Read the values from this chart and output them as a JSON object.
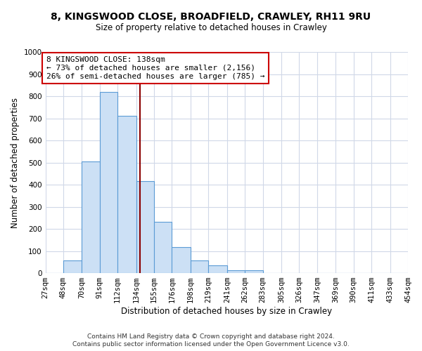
{
  "title": "8, KINGSWOOD CLOSE, BROADFIELD, CRAWLEY, RH11 9RU",
  "subtitle": "Size of property relative to detached houses in Crawley",
  "xlabel": "Distribution of detached houses by size in Crawley",
  "ylabel": "Number of detached properties",
  "bar_edges": [
    27,
    48,
    70,
    91,
    112,
    134,
    155,
    176,
    198,
    219,
    241,
    262,
    283,
    305,
    326,
    347,
    369,
    390,
    411,
    433,
    454
  ],
  "bar_heights": [
    0,
    57,
    505,
    820,
    710,
    415,
    233,
    118,
    57,
    35,
    12,
    12,
    0,
    0,
    0,
    0,
    0,
    0,
    0,
    0
  ],
  "bar_color": "#cce0f5",
  "bar_edge_color": "#5b9bd5",
  "property_size": 138,
  "vline_color": "#8b0000",
  "annotation_line1": "8 KINGSWOOD CLOSE: 138sqm",
  "annotation_line2": "← 73% of detached houses are smaller (2,156)",
  "annotation_line3": "26% of semi-detached houses are larger (785) →",
  "annotation_box_color": "#ffffff",
  "annotation_box_edge_color": "#cc0000",
  "ylim": [
    0,
    1000
  ],
  "yticks": [
    0,
    100,
    200,
    300,
    400,
    500,
    600,
    700,
    800,
    900,
    1000
  ],
  "footer1": "Contains HM Land Registry data © Crown copyright and database right 2024.",
  "footer2": "Contains public sector information licensed under the Open Government Licence v3.0.",
  "background_color": "#ffffff",
  "grid_color": "#d0d8e8",
  "title_fontsize": 10,
  "subtitle_fontsize": 8.5,
  "tick_fontsize": 7.5,
  "axis_label_fontsize": 8.5,
  "annotation_fontsize": 8,
  "footer_fontsize": 6.5
}
